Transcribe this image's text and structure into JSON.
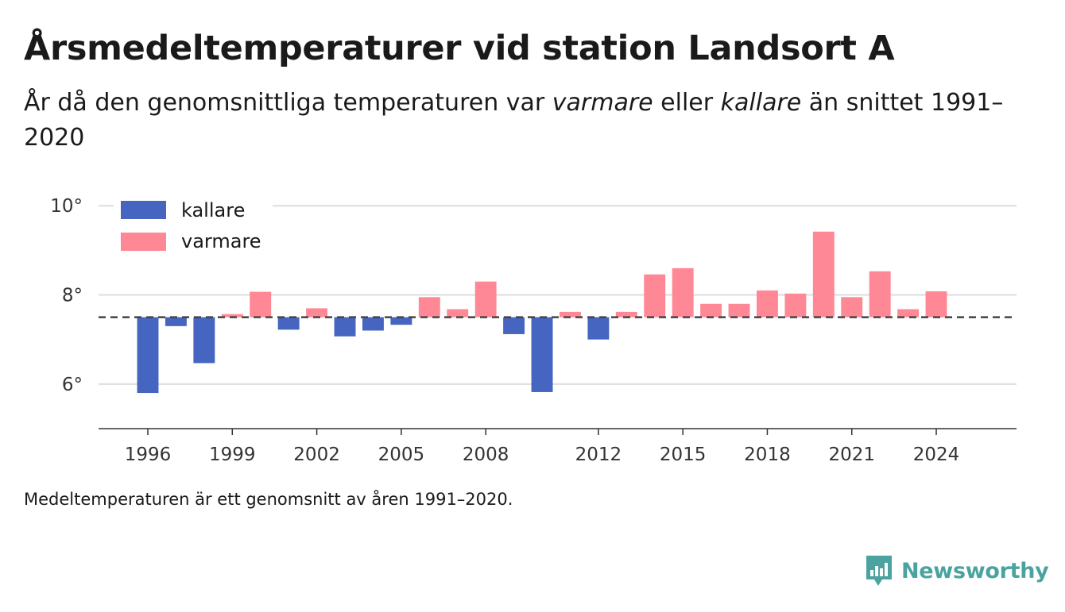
{
  "title": "Årsmedeltemperaturer vid station Landsort A",
  "subtitle": {
    "part1": "År då den genomsnittliga temperaturen var ",
    "warm_word": "varmare",
    "part2": " eller ",
    "cold_word": "kallare",
    "part3": " än snittet 1991–2020"
  },
  "footnote": "Medeltemperaturen är ett genomsnitt av åren 1991–2020.",
  "brand": {
    "name": "Newsworthy",
    "icon": "newsworthy-chart-logo-icon",
    "color": "#4ba3a0"
  },
  "colors": {
    "colder": "#4565c0",
    "warmer": "#ff8896",
    "baseline": "#444444",
    "grid": "#dddddd"
  },
  "chart_data": {
    "type": "bar",
    "baseline": 7.5,
    "ylim": [
      5,
      10.2
    ],
    "yticks": [
      6,
      8,
      10
    ],
    "ytick_labels": [
      "6°",
      "8°",
      "10°"
    ],
    "xticks": [
      1996,
      1999,
      2002,
      2005,
      2008,
      2012,
      2015,
      2018,
      2021,
      2024
    ],
    "xlim": [
      1994.25,
      2026.85
    ],
    "grid": "horizontal",
    "legend_position": "top-left",
    "legend": [
      {
        "label": "kallare",
        "color": "#4565c0"
      },
      {
        "label": "varmare",
        "color": "#ff8896"
      }
    ],
    "x": [
      1996,
      1997,
      1998,
      1999,
      2000,
      2001,
      2002,
      2003,
      2004,
      2005,
      2006,
      2007,
      2008,
      2009,
      2010,
      2011,
      2012,
      2013,
      2014,
      2015,
      2016,
      2017,
      2018,
      2019,
      2020,
      2021,
      2022,
      2023,
      2024
    ],
    "values": [
      5.8,
      7.3,
      6.47,
      7.57,
      8.07,
      7.22,
      7.7,
      7.07,
      7.2,
      7.33,
      7.95,
      7.68,
      8.3,
      7.12,
      5.82,
      7.62,
      7.0,
      7.62,
      8.46,
      8.6,
      7.8,
      7.8,
      8.1,
      8.03,
      9.42,
      7.95,
      8.53,
      7.68,
      8.08
    ]
  }
}
